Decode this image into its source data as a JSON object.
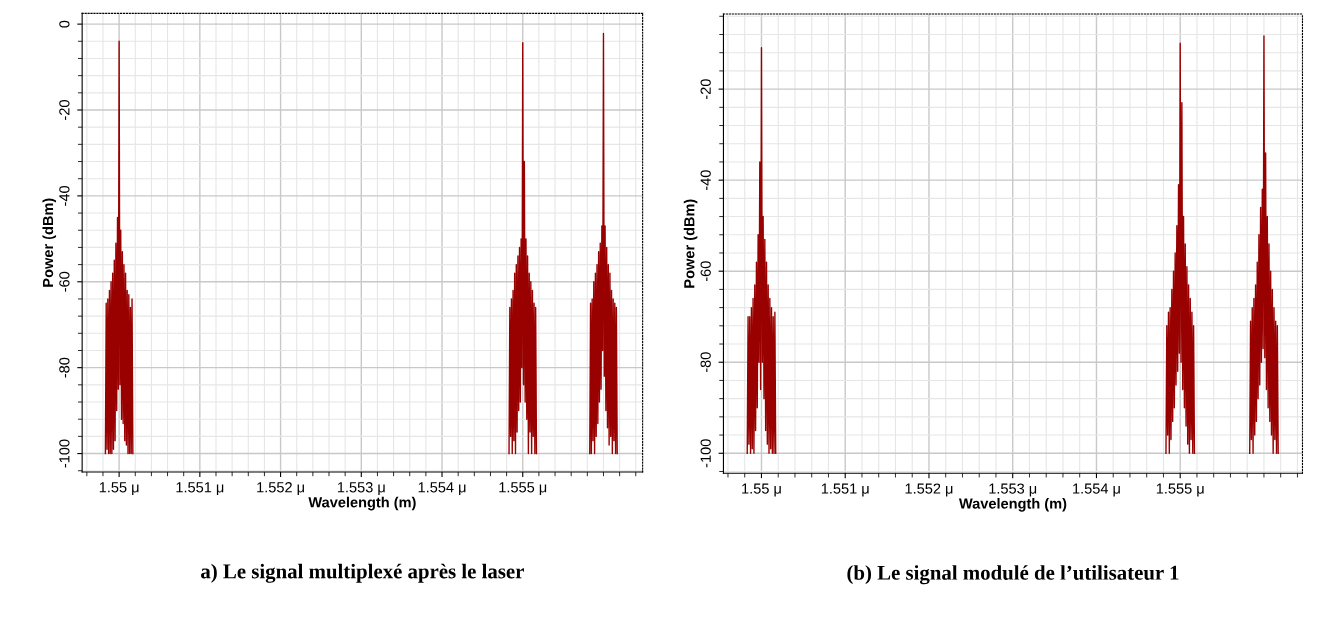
{
  "chart_data": [
    {
      "type": "line",
      "title": "a) Le signal multiplexé après le laser",
      "xlabel": "Wavelength (m)",
      "ylabel": "Power (dBm)",
      "xlim": [
        1.549542,
        1.556485
      ],
      "ylim": [
        -104.3,
        2.5
      ],
      "xticks": [
        {
          "value": 1.55,
          "label": "1.55 μ"
        },
        {
          "value": 1.551,
          "label": "1.551 μ"
        },
        {
          "value": 1.552,
          "label": "1.552 μ"
        },
        {
          "value": 1.553,
          "label": "1.553 μ"
        },
        {
          "value": 1.554,
          "label": "1.554 μ"
        },
        {
          "value": 1.555,
          "label": "1.555 μ"
        }
      ],
      "yticks": [
        0,
        -20,
        -40,
        -60,
        -80,
        -100
      ],
      "grid": true,
      "line_style": "solid",
      "marker": "none",
      "series": [
        {
          "color": "#990000",
          "x": [
            1.54983,
            1.54984,
            1.54985,
            1.54986,
            1.54987,
            1.54988,
            1.54989,
            1.5499,
            1.54991,
            1.54992,
            1.54993,
            1.54994,
            1.54995,
            1.54996,
            1.54997,
            1.54998,
            1.54999,
            1.55,
            1.55001,
            1.55002,
            1.55003,
            1.55004,
            1.55005,
            1.55006,
            1.55007,
            1.55008,
            1.55009,
            1.5501,
            1.55011,
            1.55012,
            1.55013,
            1.55014,
            1.55015,
            1.55016,
            1.55017
          ],
          "values": [
            -100,
            -65,
            -99,
            -64,
            -100,
            -62,
            -100,
            -60,
            -100,
            -58,
            -99,
            -55,
            -97,
            -51,
            -90,
            -45,
            -85,
            -4,
            -84,
            -48,
            -92,
            -53,
            -93,
            -56,
            -97,
            -58,
            -98,
            -62,
            -100,
            -63,
            -100,
            -66,
            -100,
            -64,
            -100
          ]
        },
        {
          "color": "#990000",
          "x": [
            1.55483,
            1.55484,
            1.55485,
            1.55486,
            1.55487,
            1.55488,
            1.55489,
            1.5549,
            1.55491,
            1.55492,
            1.55493,
            1.55494,
            1.55495,
            1.55496,
            1.55497,
            1.55498,
            1.55499,
            1.555,
            1.55501,
            1.55502,
            1.55503,
            1.55504,
            1.55505,
            1.55506,
            1.55507,
            1.55508,
            1.55509,
            1.5551,
            1.55511,
            1.55512,
            1.55513,
            1.55514,
            1.55515,
            1.55516,
            1.55517
          ],
          "values": [
            -100,
            -66,
            -96,
            -64,
            -100,
            -62,
            -97,
            -58,
            -100,
            -56,
            -95,
            -54,
            -90,
            -52,
            -88,
            -50,
            -80,
            -4.3,
            -84,
            -32,
            -88,
            -50,
            -92,
            -54,
            -100,
            -58,
            -95,
            -60,
            -100,
            -62,
            -96,
            -65,
            -100,
            -66,
            -100
          ]
        },
        {
          "color": "#990000",
          "x": [
            1.55583,
            1.55584,
            1.55585,
            1.55586,
            1.55587,
            1.55588,
            1.55589,
            1.5559,
            1.55591,
            1.55592,
            1.55593,
            1.55594,
            1.55595,
            1.55596,
            1.55597,
            1.55598,
            1.55599,
            1.556,
            1.55601,
            1.55602,
            1.55603,
            1.55604,
            1.55605,
            1.55606,
            1.55607,
            1.55608,
            1.55609,
            1.5561,
            1.55611,
            1.55612,
            1.55613,
            1.55614,
            1.55615,
            1.55616,
            1.55617
          ],
          "values": [
            -100,
            -65,
            -100,
            -64,
            -97,
            -60,
            -100,
            -58,
            -96,
            -56,
            -93,
            -53,
            -88,
            -51,
            -85,
            -47,
            -76,
            -2.2,
            -82,
            -47,
            -90,
            -52,
            -94,
            -56,
            -98,
            -58,
            -96,
            -62,
            -100,
            -64,
            -97,
            -65,
            -100,
            -66,
            -100
          ]
        }
      ]
    },
    {
      "type": "line",
      "title": "(b) Le signal modulé de l’utilisateur 1",
      "xlabel": "Wavelength (m)",
      "ylabel": "Power (dBm)",
      "xlim": [
        1.549546,
        1.55646
      ],
      "ylim": [
        -104.4,
        -3.5
      ],
      "xticks": [
        {
          "value": 1.55,
          "label": "1.55 μ"
        },
        {
          "value": 1.551,
          "label": "1.551 μ"
        },
        {
          "value": 1.552,
          "label": "1.552 μ"
        },
        {
          "value": 1.553,
          "label": "1.553 μ"
        },
        {
          "value": 1.554,
          "label": "1.554 μ"
        },
        {
          "value": 1.555,
          "label": "1.555 μ"
        }
      ],
      "yticks": [
        -20,
        -40,
        -60,
        -80,
        -100
      ],
      "grid": true,
      "line_style": "solid",
      "marker": "none",
      "series": [
        {
          "color": "#990000",
          "x": [
            1.54983,
            1.54984,
            1.54985,
            1.54986,
            1.54987,
            1.54988,
            1.54989,
            1.5499,
            1.54991,
            1.54992,
            1.54993,
            1.54994,
            1.54995,
            1.54996,
            1.54997,
            1.54998,
            1.54999,
            1.55,
            1.55001,
            1.55002,
            1.55003,
            1.55004,
            1.55005,
            1.55006,
            1.55007,
            1.55008,
            1.55009,
            1.5501,
            1.55011,
            1.55012,
            1.55013,
            1.55014,
            1.55015,
            1.55016,
            1.55017
          ],
          "values": [
            -100,
            -70,
            -98,
            -70,
            -100,
            -68,
            -99,
            -66,
            -100,
            -63,
            -95,
            -58,
            -90,
            -52,
            -80,
            -36,
            -86,
            -10.9,
            -80,
            -48,
            -88,
            -53,
            -95,
            -58,
            -98,
            -63,
            -100,
            -66,
            -99,
            -68,
            -100,
            -70,
            -100,
            -69,
            -100
          ]
        },
        {
          "color": "#990000",
          "x": [
            1.55483,
            1.55484,
            1.55485,
            1.55486,
            1.55487,
            1.55488,
            1.55489,
            1.5549,
            1.55491,
            1.55492,
            1.55493,
            1.55494,
            1.55495,
            1.55496,
            1.55497,
            1.55498,
            1.55499,
            1.555,
            1.55501,
            1.55502,
            1.55503,
            1.55504,
            1.55505,
            1.55506,
            1.55507,
            1.55508,
            1.55509,
            1.5551,
            1.55511,
            1.55512,
            1.55513,
            1.55514,
            1.55515,
            1.55516,
            1.55517
          ],
          "values": [
            -100,
            -72,
            -96,
            -69,
            -100,
            -68,
            -97,
            -64,
            -93,
            -60,
            -90,
            -56,
            -85,
            -50,
            -82,
            -41,
            -78,
            -9.9,
            -80,
            -23,
            -86,
            -48,
            -90,
            -54,
            -94,
            -59,
            -98,
            -63,
            -100,
            -66,
            -97,
            -69,
            -100,
            -72,
            -100
          ]
        },
        {
          "color": "#990000",
          "x": [
            1.55583,
            1.55584,
            1.55585,
            1.55586,
            1.55587,
            1.55588,
            1.55589,
            1.5559,
            1.55591,
            1.55592,
            1.55593,
            1.55594,
            1.55595,
            1.55596,
            1.55597,
            1.55598,
            1.55599,
            1.556,
            1.55601,
            1.55602,
            1.55603,
            1.55604,
            1.55605,
            1.55606,
            1.55607,
            1.55608,
            1.55609,
            1.5561,
            1.55611,
            1.55612,
            1.55613,
            1.55614,
            1.55615,
            1.55616,
            1.55617
          ],
          "values": [
            -100,
            -71,
            -97,
            -68,
            -100,
            -66,
            -96,
            -63,
            -93,
            -58,
            -88,
            -52,
            -85,
            -46,
            -80,
            -42,
            -77,
            -8.3,
            -79,
            -34,
            -86,
            -48,
            -90,
            -54,
            -93,
            -60,
            -96,
            -64,
            -100,
            -68,
            -97,
            -71,
            -100,
            -72,
            -100
          ]
        }
      ]
    }
  ]
}
